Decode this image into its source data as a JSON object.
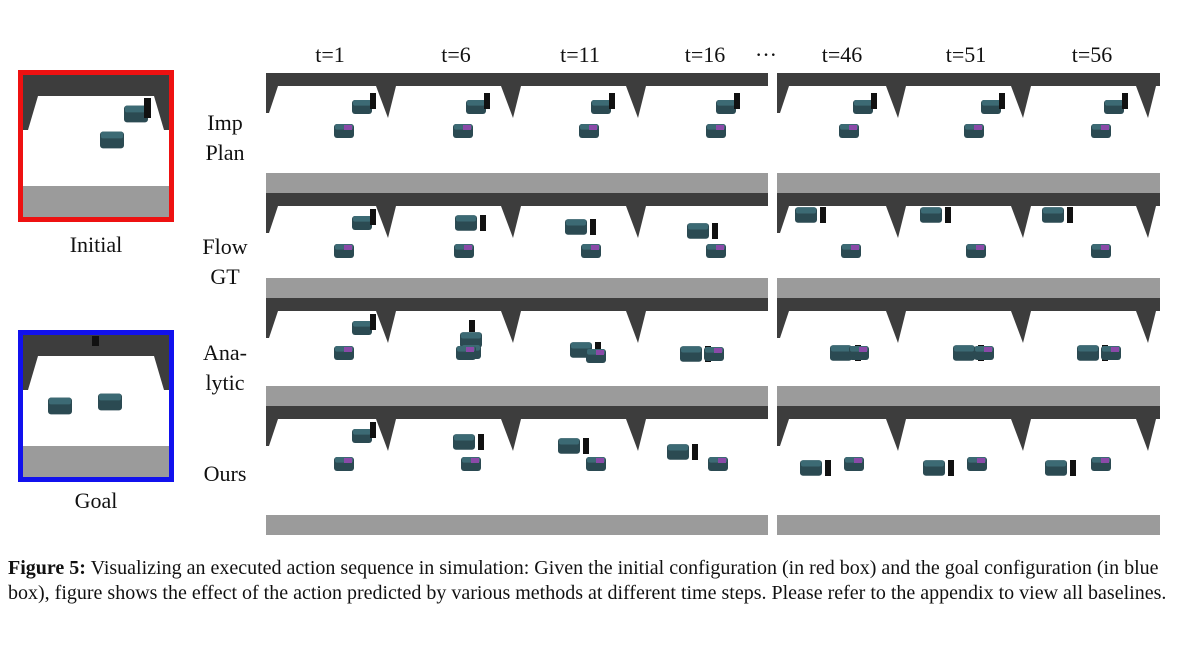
{
  "figure": {
    "time_labels": [
      "t=1",
      "t=6",
      "t=11",
      "t=16",
      "t=46",
      "t=51",
      "t=56"
    ],
    "ellipsis": "···",
    "initial_label": "Initial",
    "goal_label": "Goal",
    "rows": [
      {
        "label_line1": "Imp",
        "label_line2": "Plan"
      },
      {
        "label_line1": "Flow",
        "label_line2": "GT"
      },
      {
        "label_line1": "Ana-",
        "label_line2": "lytic"
      },
      {
        "label_line1": "Ours",
        "label_line2": ""
      }
    ],
    "colors": {
      "initial_border": "#ee1111",
      "goal_border": "#1111ee",
      "wall": "#3d3d3d",
      "floor": "#ffffff",
      "front_edge": "#9b9b9b",
      "block": "#2b4a52",
      "block_top": "#3c6a74",
      "target_marker": "#8a4aa8",
      "pusher": "#111111"
    }
  },
  "caption": {
    "label": "Figure 5:",
    "text": " Visualizing an executed action sequence in simulation: Given the initial configuration (in red box) and the goal configuration (in blue box), figure shows the effect of the action predicted by various methods at different time steps. Please refer to the appendix to view all baselines."
  }
}
